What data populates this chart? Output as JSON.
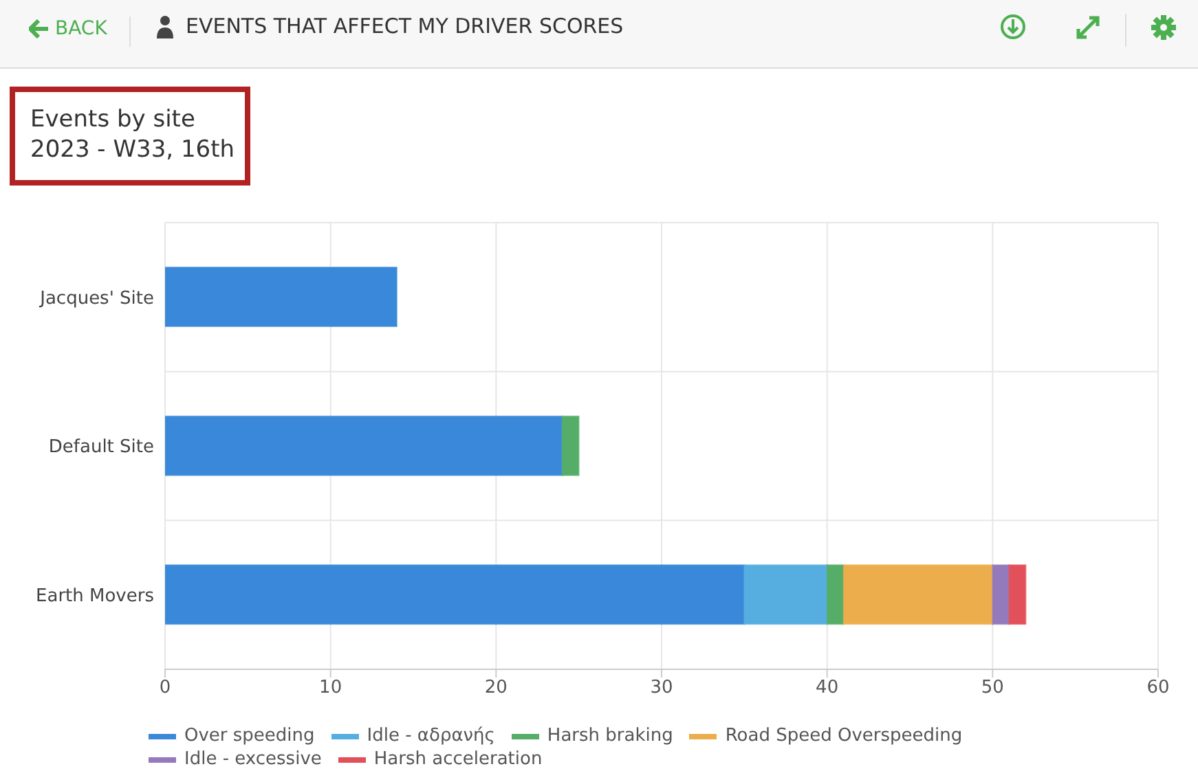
{
  "chart_data": {
    "type": "bar",
    "orientation": "horizontal",
    "stacked": true,
    "title": "Events by site",
    "subtitle": "2023 - W33, 16th",
    "annotations": [
      "BACK",
      "EVENTS THAT AFFECT MY DRIVER SCORES"
    ],
    "categories": [
      "Jacques' Site",
      "Default Site",
      "Earth Movers"
    ],
    "series": [
      {
        "name": "Over speeding",
        "color": "#3a88da",
        "values": [
          14,
          24,
          35
        ]
      },
      {
        "name": "Idle - αδρανής",
        "color": "#56aee0",
        "values": [
          null,
          null,
          5
        ]
      },
      {
        "name": "Harsh braking",
        "color": "#55ad68",
        "values": [
          null,
          1,
          1
        ]
      },
      {
        "name": "Road Speed Overspeeding",
        "color": "#ecad4c",
        "values": [
          null,
          null,
          9
        ]
      },
      {
        "name": "Idle - excessive",
        "color": "#9479bb",
        "values": [
          null,
          null,
          1
        ]
      },
      {
        "name": "Harsh acceleration",
        "color": "#e2505a",
        "values": [
          null,
          null,
          1
        ]
      }
    ],
    "xlim": [
      0,
      60
    ],
    "xticks": [
      0,
      10,
      20,
      30,
      40,
      50,
      60
    ],
    "grid": true,
    "legend": "bottom"
  }
}
